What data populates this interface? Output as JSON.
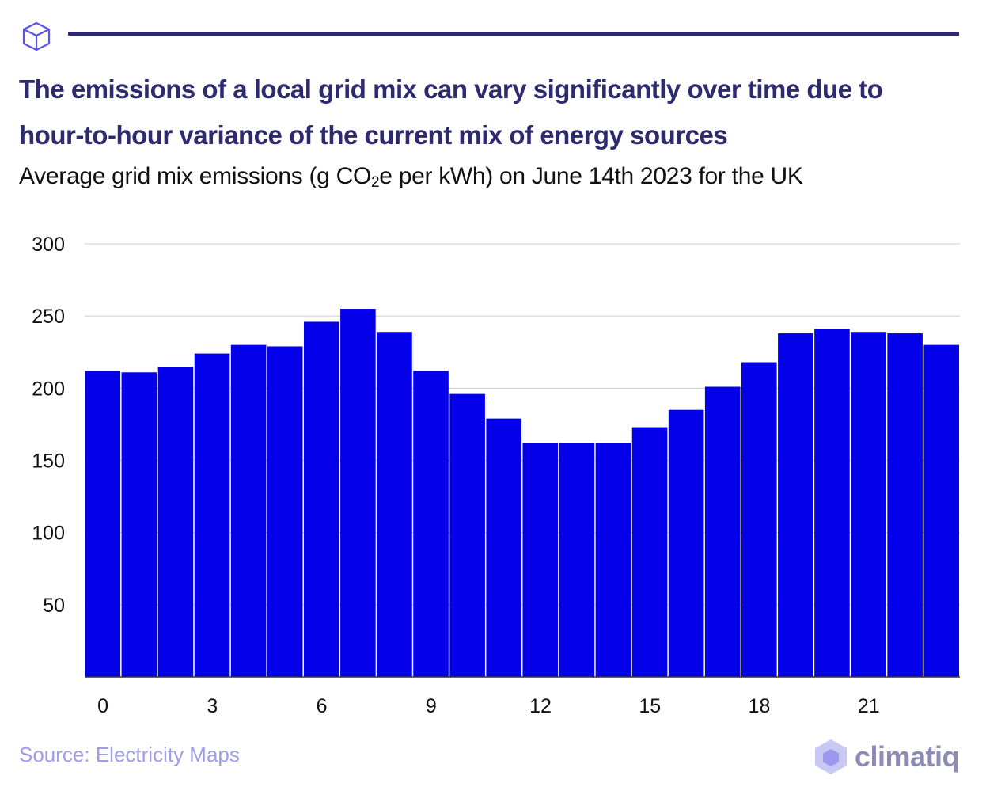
{
  "header": {
    "icon": "cube-icon",
    "title": "The emissions of a local grid mix can vary significantly over time due to hour-to-hour variance of the current mix of energy sources",
    "subtitle_pre": "Average grid mix emissions (g CO",
    "subtitle_sub": "2",
    "subtitle_post": "e per kWh) on June 14th 2023 for the UK"
  },
  "footer": {
    "source": "Source: Electricity Maps",
    "logo": "climatiq"
  },
  "colors": {
    "bar": "#0500ea",
    "title": "#2d2a6e",
    "source": "#9f9de8",
    "grid": "#cccccc"
  },
  "chart_data": {
    "type": "bar",
    "title": "The emissions of a local grid mix can vary significantly over time due to hour-to-hour variance of the current mix of energy sources",
    "subtitle": "Average grid mix emissions (g CO2e per kWh) on June 14th 2023 for the UK",
    "xlabel": "",
    "ylabel": "",
    "categories": [
      0,
      1,
      2,
      3,
      4,
      5,
      6,
      7,
      8,
      9,
      10,
      11,
      12,
      13,
      14,
      15,
      16,
      17,
      18,
      19,
      20,
      21,
      22,
      23
    ],
    "values": [
      212,
      211,
      215,
      224,
      230,
      229,
      246,
      255,
      239,
      212,
      196,
      179,
      162,
      162,
      162,
      173,
      185,
      201,
      218,
      238,
      241,
      239,
      238,
      230
    ],
    "ylim": [
      0,
      300
    ],
    "yticks": [
      50,
      100,
      150,
      200,
      250,
      300
    ],
    "xticks": [
      0,
      3,
      6,
      9,
      12,
      15,
      18,
      21
    ],
    "grid": true,
    "legend": "none"
  }
}
